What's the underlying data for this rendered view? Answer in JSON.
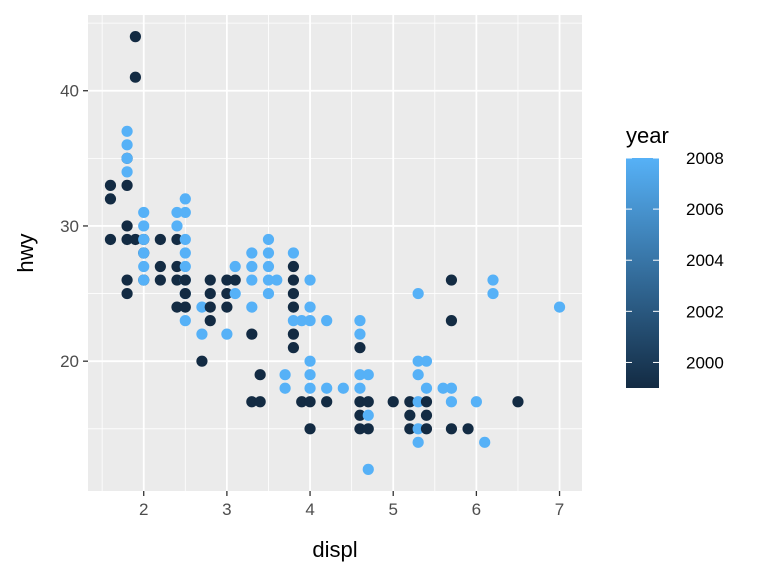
{
  "chart_data": {
    "type": "scatter",
    "xlabel": "displ",
    "ylabel": "hwy",
    "xlim": [
      1.33,
      7.27
    ],
    "ylim": [
      10.4,
      45.6
    ],
    "x_ticks": [
      2,
      3,
      4,
      5,
      6,
      7
    ],
    "y_ticks": [
      20,
      30,
      40
    ],
    "x_tick_labels": [
      "2",
      "3",
      "4",
      "5",
      "6",
      "7"
    ],
    "y_tick_labels": [
      "20",
      "30",
      "40"
    ],
    "grid": true,
    "legend": {
      "title": "year",
      "position": "right",
      "type": "colorbar",
      "range": [
        1999,
        2008
      ],
      "breaks": [
        2000,
        2002,
        2004,
        2006,
        2008
      ],
      "labels": [
        "2000",
        "2002",
        "2004",
        "2006",
        "2008"
      ],
      "color_low": "#132b43",
      "color_high": "#56b1f7"
    },
    "points": [
      {
        "x": 1.6,
        "y": 33,
        "year": 1999
      },
      {
        "x": 1.6,
        "y": 32,
        "year": 1999
      },
      {
        "x": 1.6,
        "y": 29,
        "year": 1999
      },
      {
        "x": 1.8,
        "y": 35,
        "year": 1999
      },
      {
        "x": 1.8,
        "y": 33,
        "year": 1999
      },
      {
        "x": 1.8,
        "y": 30,
        "year": 1999
      },
      {
        "x": 1.8,
        "y": 29,
        "year": 1999
      },
      {
        "x": 1.8,
        "y": 26,
        "year": 1999
      },
      {
        "x": 1.8,
        "y": 25,
        "year": 1999
      },
      {
        "x": 1.8,
        "y": 37,
        "year": 2008
      },
      {
        "x": 1.8,
        "y": 36,
        "year": 2008
      },
      {
        "x": 1.8,
        "y": 35,
        "year": 2008
      },
      {
        "x": 1.8,
        "y": 34,
        "year": 2008
      },
      {
        "x": 1.9,
        "y": 44,
        "year": 1999
      },
      {
        "x": 1.9,
        "y": 41,
        "year": 1999
      },
      {
        "x": 1.9,
        "y": 29,
        "year": 1999
      },
      {
        "x": 2.0,
        "y": 29,
        "year": 1999
      },
      {
        "x": 2.0,
        "y": 28,
        "year": 1999
      },
      {
        "x": 2.0,
        "y": 26,
        "year": 1999
      },
      {
        "x": 2.0,
        "y": 31,
        "year": 2008
      },
      {
        "x": 2.0,
        "y": 30,
        "year": 2008
      },
      {
        "x": 2.0,
        "y": 29,
        "year": 2008
      },
      {
        "x": 2.0,
        "y": 28,
        "year": 2008
      },
      {
        "x": 2.0,
        "y": 27,
        "year": 2008
      },
      {
        "x": 2.0,
        "y": 26,
        "year": 2008
      },
      {
        "x": 2.2,
        "y": 29,
        "year": 1999
      },
      {
        "x": 2.2,
        "y": 27,
        "year": 1999
      },
      {
        "x": 2.2,
        "y": 26,
        "year": 1999
      },
      {
        "x": 2.4,
        "y": 31,
        "year": 2008
      },
      {
        "x": 2.4,
        "y": 30,
        "year": 2008
      },
      {
        "x": 2.4,
        "y": 29,
        "year": 1999
      },
      {
        "x": 2.4,
        "y": 27,
        "year": 1999
      },
      {
        "x": 2.4,
        "y": 26,
        "year": 1999
      },
      {
        "x": 2.4,
        "y": 24,
        "year": 1999
      },
      {
        "x": 2.5,
        "y": 32,
        "year": 2008
      },
      {
        "x": 2.5,
        "y": 31,
        "year": 2008
      },
      {
        "x": 2.5,
        "y": 29,
        "year": 2008
      },
      {
        "x": 2.5,
        "y": 28,
        "year": 2008
      },
      {
        "x": 2.5,
        "y": 27,
        "year": 2008
      },
      {
        "x": 2.5,
        "y": 26,
        "year": 2008
      },
      {
        "x": 2.5,
        "y": 25,
        "year": 2008
      },
      {
        "x": 2.5,
        "y": 23,
        "year": 2008
      },
      {
        "x": 2.5,
        "y": 26,
        "year": 1999
      },
      {
        "x": 2.5,
        "y": 25,
        "year": 1999
      },
      {
        "x": 2.5,
        "y": 24,
        "year": 1999
      },
      {
        "x": 2.7,
        "y": 24,
        "year": 2008
      },
      {
        "x": 2.7,
        "y": 22,
        "year": 2008
      },
      {
        "x": 2.7,
        "y": 20,
        "year": 1999
      },
      {
        "x": 2.8,
        "y": 26,
        "year": 1999
      },
      {
        "x": 2.8,
        "y": 25,
        "year": 1999
      },
      {
        "x": 2.8,
        "y": 24,
        "year": 1999
      },
      {
        "x": 2.8,
        "y": 23,
        "year": 1999
      },
      {
        "x": 3.0,
        "y": 26,
        "year": 1999
      },
      {
        "x": 3.0,
        "y": 25,
        "year": 1999
      },
      {
        "x": 3.0,
        "y": 24,
        "year": 1999
      },
      {
        "x": 3.0,
        "y": 22,
        "year": 2008
      },
      {
        "x": 3.1,
        "y": 27,
        "year": 2008
      },
      {
        "x": 3.1,
        "y": 26,
        "year": 1999
      },
      {
        "x": 3.1,
        "y": 25,
        "year": 2008
      },
      {
        "x": 3.3,
        "y": 28,
        "year": 2008
      },
      {
        "x": 3.3,
        "y": 27,
        "year": 2008
      },
      {
        "x": 3.3,
        "y": 26,
        "year": 2008
      },
      {
        "x": 3.3,
        "y": 24,
        "year": 2008
      },
      {
        "x": 3.3,
        "y": 22,
        "year": 1999
      },
      {
        "x": 3.3,
        "y": 17,
        "year": 1999
      },
      {
        "x": 3.4,
        "y": 19,
        "year": 1999
      },
      {
        "x": 3.4,
        "y": 17,
        "year": 1999
      },
      {
        "x": 3.5,
        "y": 29,
        "year": 2008
      },
      {
        "x": 3.5,
        "y": 28,
        "year": 2008
      },
      {
        "x": 3.5,
        "y": 27,
        "year": 2008
      },
      {
        "x": 3.5,
        "y": 26,
        "year": 2008
      },
      {
        "x": 3.5,
        "y": 25,
        "year": 2008
      },
      {
        "x": 3.6,
        "y": 26,
        "year": 2008
      },
      {
        "x": 3.7,
        "y": 19,
        "year": 2008
      },
      {
        "x": 3.7,
        "y": 18,
        "year": 2008
      },
      {
        "x": 3.8,
        "y": 28,
        "year": 2008
      },
      {
        "x": 3.8,
        "y": 27,
        "year": 1999
      },
      {
        "x": 3.8,
        "y": 26,
        "year": 1999
      },
      {
        "x": 3.8,
        "y": 25,
        "year": 1999
      },
      {
        "x": 3.8,
        "y": 24,
        "year": 1999
      },
      {
        "x": 3.8,
        "y": 23,
        "year": 2008
      },
      {
        "x": 3.8,
        "y": 22,
        "year": 1999
      },
      {
        "x": 3.8,
        "y": 21,
        "year": 1999
      },
      {
        "x": 3.9,
        "y": 23,
        "year": 2008
      },
      {
        "x": 3.9,
        "y": 17,
        "year": 1999
      },
      {
        "x": 4.0,
        "y": 26,
        "year": 2008
      },
      {
        "x": 4.0,
        "y": 24,
        "year": 2008
      },
      {
        "x": 4.0,
        "y": 23,
        "year": 2008
      },
      {
        "x": 4.0,
        "y": 20,
        "year": 2008
      },
      {
        "x": 4.0,
        "y": 19,
        "year": 2008
      },
      {
        "x": 4.0,
        "y": 18,
        "year": 2008
      },
      {
        "x": 4.0,
        "y": 17,
        "year": 1999
      },
      {
        "x": 4.0,
        "y": 15,
        "year": 1999
      },
      {
        "x": 4.2,
        "y": 23,
        "year": 2008
      },
      {
        "x": 4.2,
        "y": 18,
        "year": 2008
      },
      {
        "x": 4.2,
        "y": 17,
        "year": 1999
      },
      {
        "x": 4.4,
        "y": 18,
        "year": 2008
      },
      {
        "x": 4.6,
        "y": 23,
        "year": 2008
      },
      {
        "x": 4.6,
        "y": 22,
        "year": 2008
      },
      {
        "x": 4.6,
        "y": 21,
        "year": 1999
      },
      {
        "x": 4.6,
        "y": 19,
        "year": 2008
      },
      {
        "x": 4.6,
        "y": 18,
        "year": 2008
      },
      {
        "x": 4.6,
        "y": 17,
        "year": 1999
      },
      {
        "x": 4.6,
        "y": 16,
        "year": 1999
      },
      {
        "x": 4.6,
        "y": 15,
        "year": 1999
      },
      {
        "x": 4.7,
        "y": 19,
        "year": 2008
      },
      {
        "x": 4.7,
        "y": 17,
        "year": 1999
      },
      {
        "x": 4.7,
        "y": 16,
        "year": 2008
      },
      {
        "x": 4.7,
        "y": 15,
        "year": 1999
      },
      {
        "x": 4.7,
        "y": 12,
        "year": 2008
      },
      {
        "x": 5.0,
        "y": 17,
        "year": 1999
      },
      {
        "x": 5.2,
        "y": 17,
        "year": 1999
      },
      {
        "x": 5.2,
        "y": 16,
        "year": 1999
      },
      {
        "x": 5.2,
        "y": 15,
        "year": 1999
      },
      {
        "x": 5.3,
        "y": 25,
        "year": 2008
      },
      {
        "x": 5.3,
        "y": 20,
        "year": 2008
      },
      {
        "x": 5.3,
        "y": 19,
        "year": 2008
      },
      {
        "x": 5.3,
        "y": 17,
        "year": 2008
      },
      {
        "x": 5.3,
        "y": 15,
        "year": 2008
      },
      {
        "x": 5.3,
        "y": 14,
        "year": 2008
      },
      {
        "x": 5.4,
        "y": 20,
        "year": 2008
      },
      {
        "x": 5.4,
        "y": 18,
        "year": 2008
      },
      {
        "x": 5.4,
        "y": 17,
        "year": 1999
      },
      {
        "x": 5.4,
        "y": 16,
        "year": 1999
      },
      {
        "x": 5.4,
        "y": 15,
        "year": 1999
      },
      {
        "x": 5.6,
        "y": 18,
        "year": 2008
      },
      {
        "x": 5.7,
        "y": 26,
        "year": 1999
      },
      {
        "x": 5.7,
        "y": 23,
        "year": 1999
      },
      {
        "x": 5.7,
        "y": 18,
        "year": 2008
      },
      {
        "x": 5.7,
        "y": 17,
        "year": 2008
      },
      {
        "x": 5.7,
        "y": 15,
        "year": 1999
      },
      {
        "x": 5.9,
        "y": 15,
        "year": 1999
      },
      {
        "x": 6.0,
        "y": 17,
        "year": 2008
      },
      {
        "x": 6.1,
        "y": 14,
        "year": 2008
      },
      {
        "x": 6.2,
        "y": 26,
        "year": 2008
      },
      {
        "x": 6.2,
        "y": 25,
        "year": 2008
      },
      {
        "x": 6.5,
        "y": 17,
        "year": 1999
      },
      {
        "x": 7.0,
        "y": 24,
        "year": 2008
      }
    ]
  }
}
